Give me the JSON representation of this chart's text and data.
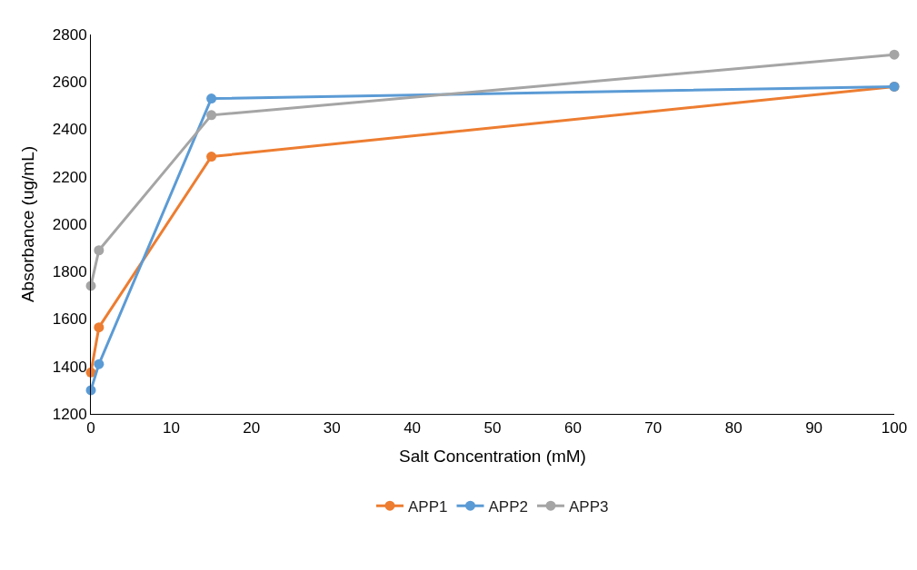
{
  "chart_data": {
    "type": "line",
    "xlabel": "Salt Concentration (mM)",
    "ylabel": "Absorbance (ug/mL)",
    "x": [
      0,
      1,
      15,
      100
    ],
    "series": [
      {
        "name": "APP1",
        "color": "#ed7d31",
        "values": [
          1375,
          1565,
          2285,
          2580
        ]
      },
      {
        "name": "APP2",
        "color": "#5b9bd5",
        "values": [
          1300,
          1410,
          2530,
          2580
        ]
      },
      {
        "name": "APP3",
        "color": "#a5a5a5",
        "values": [
          1740,
          1890,
          2460,
          2715
        ]
      }
    ],
    "xlim": [
      0,
      100
    ],
    "xticks": [
      0,
      10,
      20,
      30,
      40,
      50,
      60,
      70,
      80,
      90,
      100
    ],
    "ylim": [
      1200,
      2800
    ],
    "yticks": [
      1200,
      1400,
      1600,
      1800,
      2000,
      2200,
      2400,
      2600,
      2800
    ],
    "legend": "bottom",
    "marker": "circle",
    "line_style": "solid"
  }
}
